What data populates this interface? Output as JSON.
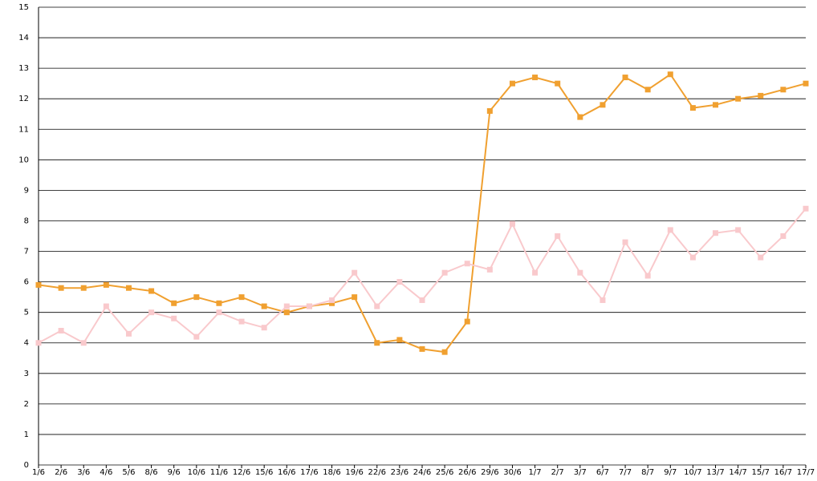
{
  "chart_data": {
    "type": "line",
    "categories": [
      "1/6",
      "2/6",
      "3/6",
      "4/6",
      "5/6",
      "8/6",
      "9/6",
      "10/6",
      "11/6",
      "12/6",
      "15/6",
      "16/6",
      "17/6",
      "18/6",
      "19/6",
      "22/6",
      "23/6",
      "24/6",
      "25/6",
      "26/6",
      "29/6",
      "30/6",
      "1/7",
      "2/7",
      "3/7",
      "6/7",
      "7/7",
      "8/7",
      "9/7",
      "10/7",
      "13/7",
      "14/7",
      "15/7",
      "16/7",
      "17/7"
    ],
    "series": [
      {
        "color": "#f0a030",
        "values": [
          5.9,
          5.8,
          5.8,
          5.9,
          5.8,
          5.7,
          5.3,
          5.5,
          5.3,
          5.5,
          5.2,
          5.0,
          5.2,
          5.3,
          5.5,
          4.0,
          4.1,
          3.8,
          3.7,
          4.7,
          11.6,
          12.5,
          12.7,
          12.5,
          11.4,
          11.8,
          12.7,
          12.3,
          12.8,
          11.7,
          11.8,
          12.0,
          12.1,
          12.3,
          12.5
        ]
      },
      {
        "color": "#f9c9cc",
        "values": [
          4.0,
          4.4,
          4.0,
          5.2,
          4.3,
          5.0,
          4.8,
          4.2,
          5.0,
          4.7,
          4.5,
          5.2,
          5.2,
          5.4,
          6.3,
          5.2,
          6.0,
          5.4,
          6.3,
          6.6,
          6.4,
          7.9,
          6.3,
          7.5,
          6.3,
          5.4,
          7.3,
          6.2,
          7.7,
          6.8,
          7.6,
          7.7,
          6.8,
          7.5,
          8.4
        ]
      }
    ],
    "ylim": [
      0,
      15
    ],
    "yticks": [
      0,
      1,
      2,
      3,
      4,
      5,
      6,
      7,
      8,
      9,
      10,
      11,
      12,
      13,
      14,
      15
    ],
    "grid": true
  }
}
